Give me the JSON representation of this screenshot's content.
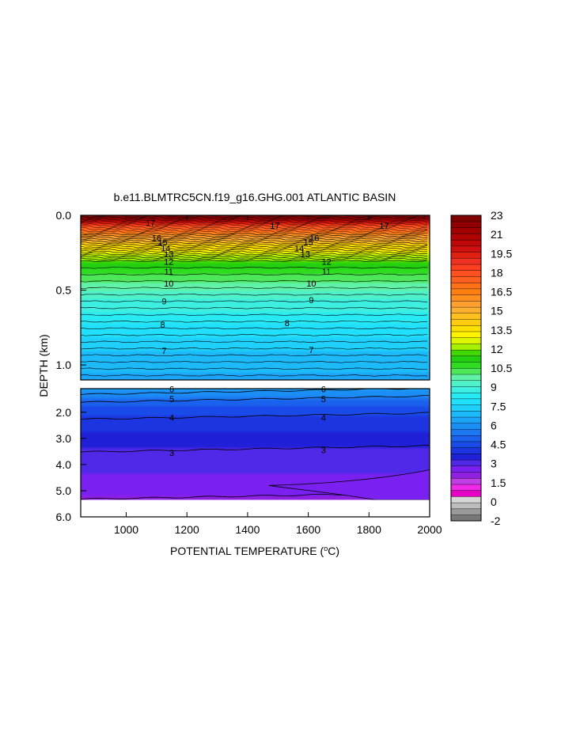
{
  "chart_data": {
    "type": "contour",
    "title": "b.e11.BLMTRC5CN.f19_g16.GHG.001 ATLANTIC BASIN",
    "xlabel": "POTENTIAL TEMPERATURE (°C)",
    "ylabel": "DEPTH (km)",
    "x_ticks": [
      1000,
      1200,
      1400,
      1600,
      1800,
      2000
    ],
    "xlim": [
      850,
      2000
    ],
    "upper_panel": {
      "ylim": [
        0.0,
        1.1
      ],
      "y_ticks": [
        "0.0",
        "0.5",
        "1.0"
      ],
      "y_tick_values": [
        0.0,
        0.5,
        1.0
      ]
    },
    "lower_panel": {
      "ylim": [
        1.1,
        6.0
      ],
      "y_ticks": [
        "2.0",
        "3.0",
        "4.0",
        "5.0",
        "6.0"
      ],
      "y_tick_values": [
        2.0,
        3.0,
        4.0,
        5.0,
        6.0
      ]
    },
    "bottom_depth_km": 5.35,
    "contour_interval": 0.5,
    "contour_levels": [
      {
        "value": 23,
        "depth_km": 0.02
      },
      {
        "value": 20,
        "depth_km": 0.05
      },
      {
        "value": 18,
        "depth_km": 0.08
      },
      {
        "value": 17,
        "depth_km": 0.11
      },
      {
        "value": 16,
        "depth_km": 0.14
      },
      {
        "value": 15,
        "depth_km": 0.17
      },
      {
        "value": 14,
        "depth_km": 0.2
      },
      {
        "value": 13,
        "depth_km": 0.245
      },
      {
        "value": 12,
        "depth_km": 0.295
      },
      {
        "value": 11,
        "depth_km": 0.36
      },
      {
        "value": 10,
        "depth_km": 0.445
      },
      {
        "value": 9,
        "depth_km": 0.565
      },
      {
        "value": 8,
        "depth_km": 0.72
      },
      {
        "value": 7,
        "depth_km": 0.9
      },
      {
        "value": 6,
        "depth_km": 1.2
      },
      {
        "value": 5,
        "depth_km": 1.5
      },
      {
        "value": 4,
        "depth_km": 2.15
      },
      {
        "value": 3,
        "depth_km": 3.4
      },
      {
        "value": 2,
        "depth_km": 5.2
      }
    ],
    "contour_labels": [
      {
        "text": "17",
        "x": 1080,
        "y": 0.05
      },
      {
        "text": "17",
        "x": 1490,
        "y": 0.07
      },
      {
        "text": "17",
        "x": 1850,
        "y": 0.07
      },
      {
        "text": "16",
        "x": 1100,
        "y": 0.15
      },
      {
        "text": "16",
        "x": 1620,
        "y": 0.15
      },
      {
        "text": "15",
        "x": 1120,
        "y": 0.18
      },
      {
        "text": "15",
        "x": 1600,
        "y": 0.18
      },
      {
        "text": "14",
        "x": 1130,
        "y": 0.22
      },
      {
        "text": "14",
        "x": 1570,
        "y": 0.22
      },
      {
        "text": "13",
        "x": 1140,
        "y": 0.26
      },
      {
        "text": "13",
        "x": 1590,
        "y": 0.26
      },
      {
        "text": "12",
        "x": 1140,
        "y": 0.31
      },
      {
        "text": "12",
        "x": 1660,
        "y": 0.31
      },
      {
        "text": "11",
        "x": 1140,
        "y": 0.375
      },
      {
        "text": "11",
        "x": 1660,
        "y": 0.375
      },
      {
        "text": "10",
        "x": 1140,
        "y": 0.455
      },
      {
        "text": "10",
        "x": 1610,
        "y": 0.455
      },
      {
        "text": "9",
        "x": 1125,
        "y": 0.575
      },
      {
        "text": "9",
        "x": 1610,
        "y": 0.565
      },
      {
        "text": "8",
        "x": 1120,
        "y": 0.73
      },
      {
        "text": "8",
        "x": 1530,
        "y": 0.72
      },
      {
        "text": "7",
        "x": 1125,
        "y": 0.905
      },
      {
        "text": "7",
        "x": 1610,
        "y": 0.9
      },
      {
        "text": "6",
        "x": 1150,
        "y": 1.12
      },
      {
        "text": "6",
        "x": 1650,
        "y": 1.12
      },
      {
        "text": "5",
        "x": 1150,
        "y": 1.5
      },
      {
        "text": "5",
        "x": 1650,
        "y": 1.5
      },
      {
        "text": "4",
        "x": 1150,
        "y": 2.2
      },
      {
        "text": "4",
        "x": 1650,
        "y": 2.2
      },
      {
        "text": "3",
        "x": 1150,
        "y": 3.55
      },
      {
        "text": "3",
        "x": 1650,
        "y": 3.45
      }
    ],
    "colorbar": {
      "colors": [
        "#777777",
        "#9a9a9a",
        "#bdbdbd",
        "#d6d6d6",
        "#e800c8",
        "#f028e8",
        "#c040e8",
        "#9020e0",
        "#7a20f0",
        "#5028e8",
        "#2020d8",
        "#1c35e0",
        "#1a4ae8",
        "#1a62ee",
        "#1b78f2",
        "#1b8ef6",
        "#1ca4f8",
        "#1cbaf9",
        "#1fd0fa",
        "#20e0fb",
        "#28eaf4",
        "#3cefe0",
        "#4ff2c8",
        "#60f2a8",
        "#4ce85a",
        "#30dc20",
        "#22d010",
        "#40d800",
        "#a8f000",
        "#ddf500",
        "#fff200",
        "#ffe000",
        "#ffcc10",
        "#ffc020",
        "#ffb030",
        "#ffa030",
        "#ff9020",
        "#ff8010",
        "#ff7018",
        "#ff6020",
        "#ff5020",
        "#ff4020",
        "#f03020",
        "#e02010",
        "#d01010",
        "#c00808",
        "#b00404",
        "#a00000",
        "#900000",
        "#800000"
      ],
      "labels": [
        "23",
        "21",
        "19.5",
        "18",
        "16.5",
        "15",
        "13.5",
        "12",
        "10.5",
        "9",
        "7.5",
        "6",
        "4.5",
        "3",
        "1.5",
        "0",
        "-2"
      ]
    }
  }
}
